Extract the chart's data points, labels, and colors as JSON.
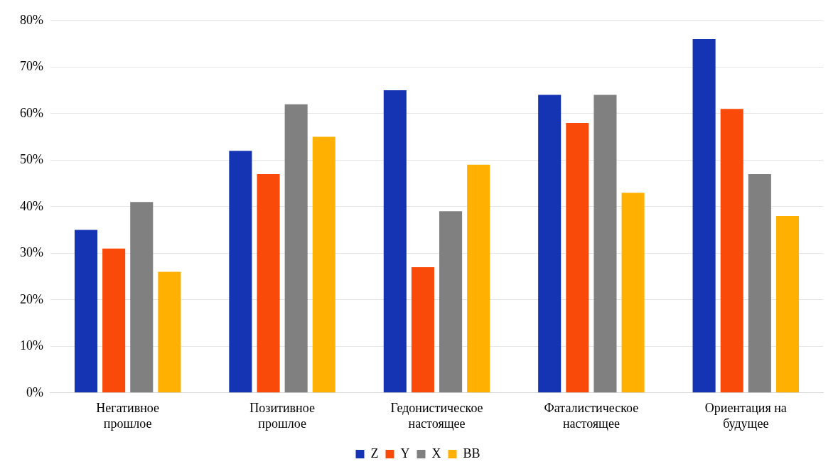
{
  "chart_data": {
    "type": "bar",
    "categories": [
      "Негативное прошлое",
      "Позитивное прошлое",
      "Гедонистическое настоящее",
      "Фаталистическое настоящее",
      "Ориентация на будущее"
    ],
    "series": [
      {
        "name": "Z",
        "color": "#1434b4",
        "values": [
          35,
          52,
          65,
          64,
          76
        ]
      },
      {
        "name": "Y",
        "color": "#fa4a0a",
        "values": [
          31,
          47,
          27,
          58,
          61
        ]
      },
      {
        "name": "X",
        "color": "#808080",
        "values": [
          41,
          62,
          39,
          64,
          47
        ]
      },
      {
        "name": "BB",
        "color": "#ffb000",
        "values": [
          26,
          55,
          49,
          43,
          38
        ]
      }
    ],
    "ylim": [
      0,
      80
    ],
    "yticks": [
      {
        "value": 0,
        "label": "0%"
      },
      {
        "value": 10,
        "label": "10%"
      },
      {
        "value": 20,
        "label": "20%"
      },
      {
        "value": 30,
        "label": "30%"
      },
      {
        "value": 40,
        "label": "40%"
      },
      {
        "value": 50,
        "label": "50%"
      },
      {
        "value": 60,
        "label": "60%"
      },
      {
        "value": 70,
        "label": "70%"
      },
      {
        "value": 80,
        "label": "80%"
      }
    ],
    "grid": "y",
    "legend": "bottom"
  }
}
